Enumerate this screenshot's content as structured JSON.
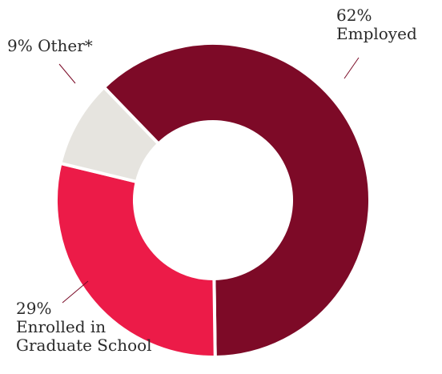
{
  "chart_data": {
    "type": "pie",
    "donut": true,
    "slices": [
      {
        "key": "employed",
        "value": 62,
        "value_text": "62%",
        "label": "Employed",
        "color": "#7d0a27"
      },
      {
        "key": "grad",
        "value": 29,
        "value_text": "29%",
        "label_lines": [
          "Enrolled in",
          "Graduate School"
        ],
        "color": "#ec1b48"
      },
      {
        "key": "other",
        "value": 9,
        "value_text": "9%",
        "label": "Other*",
        "color": "#e6e4df"
      }
    ],
    "legend": "none"
  }
}
